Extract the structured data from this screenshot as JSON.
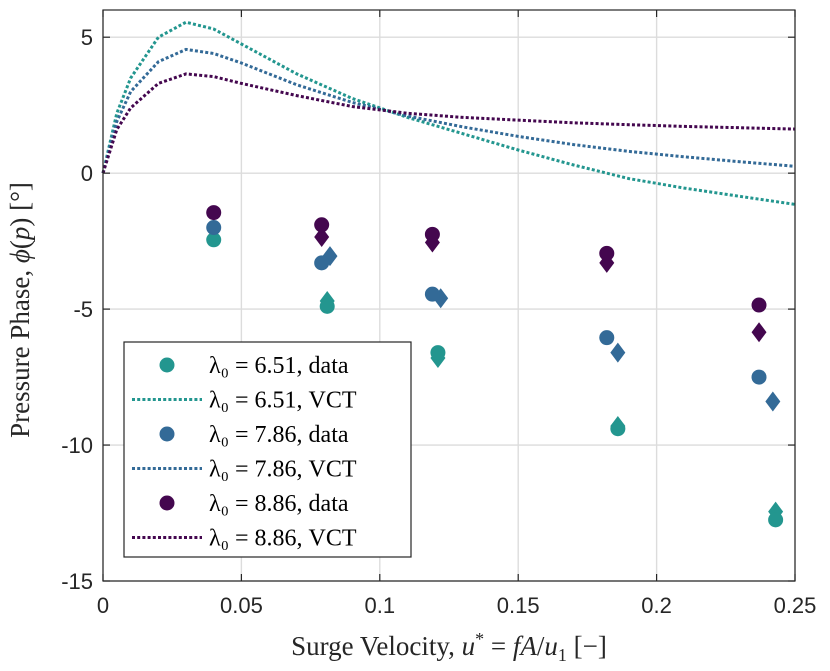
{
  "chart_data": {
    "type": "scatter",
    "title": "",
    "xlabel": "Surge Velocity, u* = fA/u₁ [−]",
    "xlabel_parts": {
      "prefix": "Surge Velocity, ",
      "var": "u",
      "star": "*",
      "eq": " = ",
      "f": "fA",
      "slash": "/",
      "u": "u",
      "sub": "1",
      "units": " [−]"
    },
    "ylabel": "Pressure Phase, ϕ(p) [°]",
    "ylabel_parts": {
      "prefix": "Pressure Phase, ",
      "phi": "ϕ",
      "open": "(",
      "p": "p",
      "close": ") [°]"
    },
    "xlim": [
      0,
      0.25
    ],
    "ylim": [
      -15,
      6
    ],
    "xticks": [
      0,
      0.05,
      0.1,
      0.15,
      0.2,
      0.25
    ],
    "xtick_labels": [
      "0",
      "0.05",
      "0.1",
      "0.15",
      "0.2",
      "0.25"
    ],
    "yticks": [
      -15,
      -10,
      -5,
      0,
      5
    ],
    "ytick_labels": [
      "-15",
      "-10",
      "-5",
      "0",
      "5"
    ],
    "grid": true,
    "legend_position": "lower-left",
    "series": [
      {
        "name": "λ₀ = 6.51, data",
        "lambda": "6.51",
        "kind": "data",
        "color": "#23968f",
        "circles": [
          [
            0.04,
            -2.45
          ],
          [
            0.081,
            -4.9
          ],
          [
            0.121,
            -6.6
          ],
          [
            0.186,
            -9.4
          ],
          [
            0.243,
            -12.75
          ]
        ],
        "diamonds": [
          [
            0.081,
            -4.7
          ],
          [
            0.121,
            -6.8
          ],
          [
            0.186,
            -9.3
          ],
          [
            0.243,
            -12.45
          ]
        ]
      },
      {
        "name": "λ₀ = 6.51, VCT",
        "lambda": "6.51",
        "kind": "VCT",
        "color": "#23968f",
        "points": [
          [
            0,
            0
          ],
          [
            0.005,
            2.2
          ],
          [
            0.01,
            3.5
          ],
          [
            0.02,
            5.0
          ],
          [
            0.03,
            5.55
          ],
          [
            0.04,
            5.3
          ],
          [
            0.05,
            4.75
          ],
          [
            0.07,
            3.65
          ],
          [
            0.09,
            2.75
          ],
          [
            0.11,
            2.05
          ],
          [
            0.13,
            1.45
          ],
          [
            0.15,
            0.85
          ],
          [
            0.17,
            0.3
          ],
          [
            0.19,
            -0.2
          ],
          [
            0.21,
            -0.55
          ],
          [
            0.23,
            -0.85
          ],
          [
            0.25,
            -1.15
          ]
        ]
      },
      {
        "name": "λ₀ = 7.86, data",
        "lambda": "7.86",
        "kind": "data",
        "color": "#336a97",
        "circles": [
          [
            0.04,
            -2.0
          ],
          [
            0.079,
            -3.3
          ],
          [
            0.119,
            -4.45
          ],
          [
            0.182,
            -6.05
          ],
          [
            0.237,
            -7.5
          ]
        ],
        "diamonds": [
          [
            0.082,
            -3.05
          ],
          [
            0.122,
            -4.6
          ],
          [
            0.186,
            -6.6
          ],
          [
            0.242,
            -8.4
          ]
        ]
      },
      {
        "name": "λ₀ = 7.86, VCT",
        "lambda": "7.86",
        "kind": "VCT",
        "color": "#336a97",
        "points": [
          [
            0,
            0
          ],
          [
            0.005,
            1.9
          ],
          [
            0.01,
            3.0
          ],
          [
            0.02,
            4.1
          ],
          [
            0.03,
            4.55
          ],
          [
            0.04,
            4.4
          ],
          [
            0.05,
            4.05
          ],
          [
            0.07,
            3.25
          ],
          [
            0.09,
            2.6
          ],
          [
            0.11,
            2.1
          ],
          [
            0.13,
            1.7
          ],
          [
            0.15,
            1.35
          ],
          [
            0.17,
            1.05
          ],
          [
            0.19,
            0.8
          ],
          [
            0.21,
            0.6
          ],
          [
            0.23,
            0.42
          ],
          [
            0.25,
            0.25
          ]
        ]
      },
      {
        "name": "λ₀ = 8.86, data",
        "lambda": "8.86",
        "kind": "data",
        "color": "#44074f",
        "circles": [
          [
            0.04,
            -1.45
          ],
          [
            0.079,
            -1.9
          ],
          [
            0.119,
            -2.25
          ],
          [
            0.182,
            -2.95
          ],
          [
            0.237,
            -4.85
          ]
        ],
        "diamonds": [
          [
            0.079,
            -2.35
          ],
          [
            0.119,
            -2.55
          ],
          [
            0.182,
            -3.3
          ],
          [
            0.237,
            -5.85
          ]
        ]
      },
      {
        "name": "λ₀ = 8.86, VCT",
        "lambda": "8.86",
        "kind": "VCT",
        "color": "#44074f",
        "points": [
          [
            0,
            0
          ],
          [
            0.005,
            1.6
          ],
          [
            0.01,
            2.4
          ],
          [
            0.02,
            3.3
          ],
          [
            0.03,
            3.65
          ],
          [
            0.04,
            3.55
          ],
          [
            0.05,
            3.3
          ],
          [
            0.07,
            2.85
          ],
          [
            0.09,
            2.45
          ],
          [
            0.11,
            2.2
          ],
          [
            0.13,
            2.05
          ],
          [
            0.15,
            1.95
          ],
          [
            0.17,
            1.85
          ],
          [
            0.19,
            1.78
          ],
          [
            0.21,
            1.72
          ],
          [
            0.23,
            1.67
          ],
          [
            0.25,
            1.62
          ]
        ]
      }
    ]
  }
}
